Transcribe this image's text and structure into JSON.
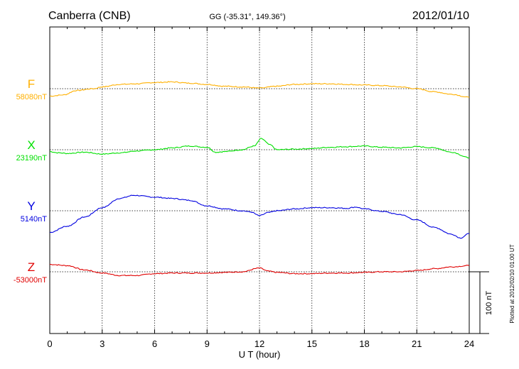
{
  "header": {
    "station": "Canberra (CNB)",
    "coords": "GG (-35.31°, 149.36°)",
    "date": "2012/01/10"
  },
  "footer": {
    "plotted_at": "Plotted at 2012/02/10 01:00 UT"
  },
  "colors": {
    "F": "#ffb000",
    "X": "#00e000",
    "Y": "#0000e0",
    "Z": "#e00000",
    "axis": "#000000"
  },
  "chart_data": {
    "type": "line",
    "title": "Canberra (CNB)",
    "xlabel": "U T (hour)",
    "xlim": [
      0,
      24
    ],
    "xticks": [
      0,
      3,
      6,
      9,
      12,
      15,
      18,
      21,
      24
    ],
    "grid": true,
    "scale_bar": {
      "label": "100 nT",
      "value_nT": 100
    },
    "series": [
      {
        "name": "F",
        "baseline_label": "58080nT",
        "baseline_nT": 58080,
        "points": [
          [
            0,
            -12
          ],
          [
            0.8,
            -10
          ],
          [
            1.5,
            -3
          ],
          [
            2.5,
            0
          ],
          [
            3,
            3
          ],
          [
            4,
            7
          ],
          [
            5,
            8
          ],
          [
            6,
            10
          ],
          [
            7,
            11
          ],
          [
            8,
            9
          ],
          [
            9,
            7
          ],
          [
            10,
            4
          ],
          [
            11,
            3
          ],
          [
            12,
            1
          ],
          [
            13,
            4
          ],
          [
            14,
            7
          ],
          [
            15,
            8
          ],
          [
            16,
            8
          ],
          [
            17,
            7
          ],
          [
            18,
            6
          ],
          [
            19,
            5
          ],
          [
            20,
            3
          ],
          [
            21,
            0
          ],
          [
            22,
            -5
          ],
          [
            23,
            -9
          ],
          [
            24,
            -14
          ]
        ]
      },
      {
        "name": "X",
        "baseline_label": "23190nT",
        "baseline_nT": 23190,
        "points": [
          [
            0,
            -3
          ],
          [
            0.5,
            -5
          ],
          [
            1,
            -6
          ],
          [
            2,
            -4
          ],
          [
            3,
            -7
          ],
          [
            4,
            -5
          ],
          [
            5,
            -2
          ],
          [
            6,
            0
          ],
          [
            7,
            3
          ],
          [
            8,
            6
          ],
          [
            9,
            4
          ],
          [
            9.5,
            -4
          ],
          [
            10,
            -3
          ],
          [
            11,
            0
          ],
          [
            11.7,
            6
          ],
          [
            12.1,
            18
          ],
          [
            12.6,
            8
          ],
          [
            13,
            0
          ],
          [
            14,
            1
          ],
          [
            15,
            2
          ],
          [
            16,
            4
          ],
          [
            17,
            5
          ],
          [
            18,
            6
          ],
          [
            19,
            4
          ],
          [
            20,
            3
          ],
          [
            21,
            5
          ],
          [
            22,
            3
          ],
          [
            23,
            -4
          ],
          [
            24,
            -13
          ]
        ]
      },
      {
        "name": "Y",
        "baseline_label": "5140nT",
        "baseline_nT": 5140,
        "points": [
          [
            0,
            -35
          ],
          [
            1,
            -25
          ],
          [
            2,
            -10
          ],
          [
            3,
            5
          ],
          [
            4,
            20
          ],
          [
            4.8,
            25
          ],
          [
            6,
            22
          ],
          [
            7,
            20
          ],
          [
            8,
            17
          ],
          [
            9,
            8
          ],
          [
            10,
            3
          ],
          [
            11,
            0
          ],
          [
            11.5,
            -2
          ],
          [
            12,
            -8
          ],
          [
            12.5,
            -3
          ],
          [
            13,
            0
          ],
          [
            14,
            3
          ],
          [
            15,
            5
          ],
          [
            16,
            5
          ],
          [
            17,
            4
          ],
          [
            17.5,
            6
          ],
          [
            18,
            3
          ],
          [
            19,
            -1
          ],
          [
            20,
            -6
          ],
          [
            21,
            -15
          ],
          [
            22,
            -27
          ],
          [
            23,
            -38
          ],
          [
            23.5,
            -44
          ],
          [
            24,
            -37
          ]
        ]
      },
      {
        "name": "Z",
        "baseline_label": "-53000nT",
        "baseline_nT": -53000,
        "points": [
          [
            0,
            12
          ],
          [
            1,
            10
          ],
          [
            2,
            3
          ],
          [
            3,
            -2
          ],
          [
            4,
            -6
          ],
          [
            5,
            -6
          ],
          [
            6,
            -3
          ],
          [
            7,
            -2
          ],
          [
            8,
            -2
          ],
          [
            9,
            -2
          ],
          [
            10,
            -1
          ],
          [
            11,
            0
          ],
          [
            12,
            6
          ],
          [
            12.5,
            1
          ],
          [
            13,
            -1
          ],
          [
            14,
            -3
          ],
          [
            15,
            -3
          ],
          [
            16,
            -2
          ],
          [
            17,
            -2
          ],
          [
            18,
            -1
          ],
          [
            19,
            0
          ],
          [
            20,
            0
          ],
          [
            21,
            2
          ],
          [
            22,
            5
          ],
          [
            23,
            8
          ],
          [
            24,
            10
          ]
        ]
      }
    ]
  }
}
